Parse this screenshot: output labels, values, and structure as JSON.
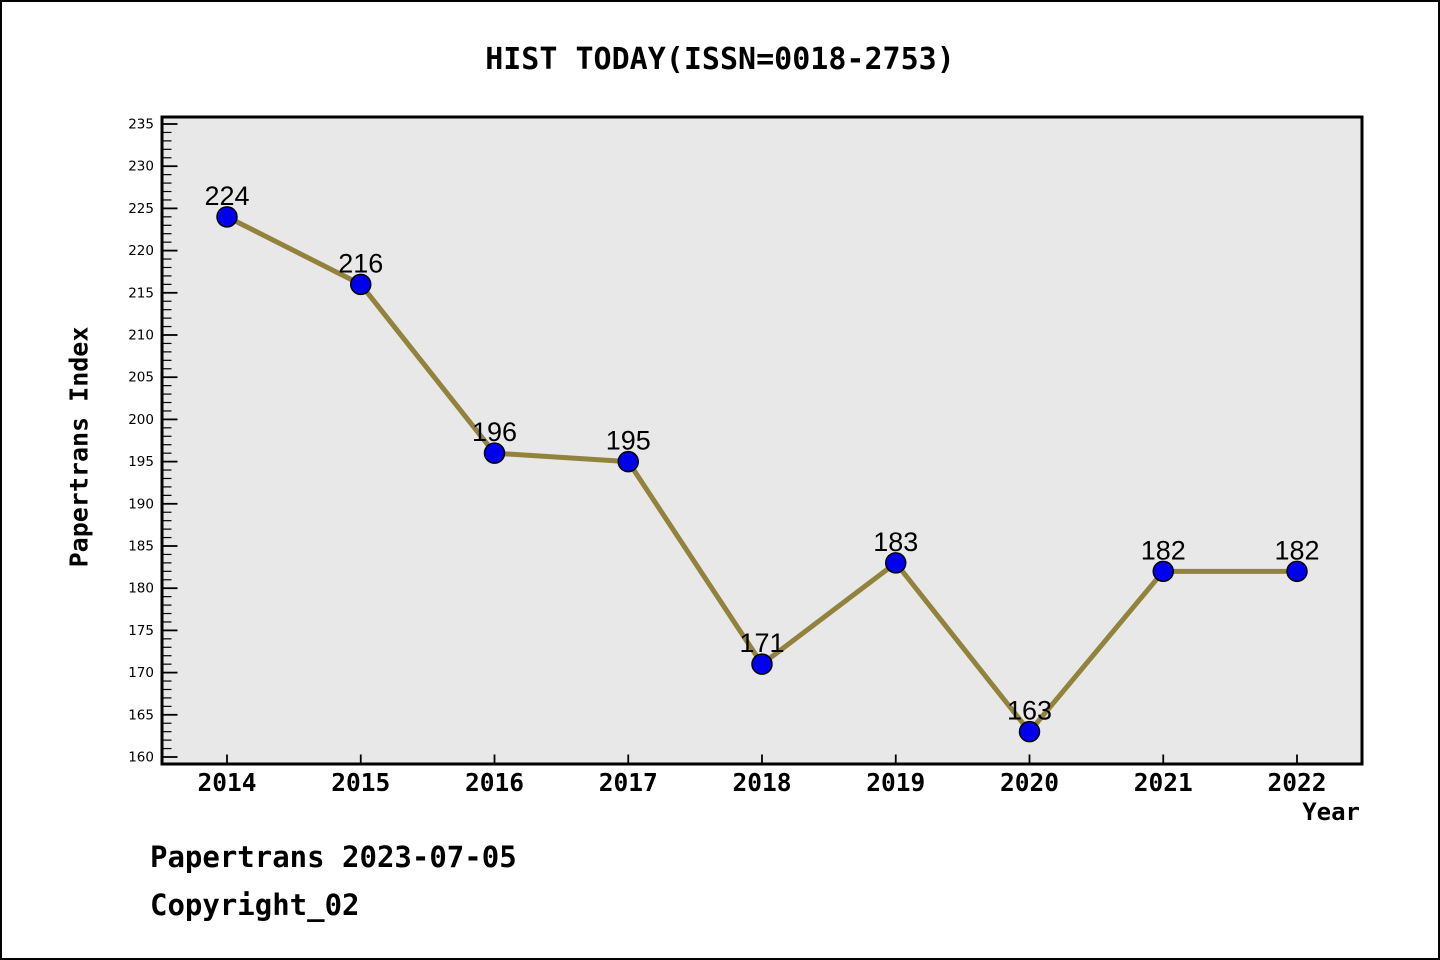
{
  "page": {
    "footer_line1": "Papertrans 2023-07-05",
    "footer_line2": "Copyright_02"
  },
  "chart_data": {
    "type": "line",
    "title": "HIST TODAY(ISSN=0018-2753)",
    "xlabel": "Year",
    "ylabel": "Papertrans Index",
    "categories": [
      "2014",
      "2015",
      "2016",
      "2017",
      "2018",
      "2019",
      "2020",
      "2021",
      "2022"
    ],
    "series": [
      {
        "name": "Papertrans Index",
        "values": [
          224,
          216,
          196,
          195,
          171,
          183,
          163,
          182,
          182
        ]
      }
    ],
    "point_labels": [
      "224",
      "216",
      "196",
      "195",
      "171",
      "183",
      "163",
      "182",
      "182"
    ],
    "ylim": [
      160,
      235
    ],
    "y_major_ticks": [
      160,
      165,
      170,
      175,
      180,
      185,
      190,
      195,
      200,
      205,
      210,
      215,
      220,
      225,
      230,
      235
    ],
    "y_major_step": 5,
    "y_minor_step": 1,
    "grid": false,
    "legend_position": "none",
    "colors": {
      "line": "#91823c",
      "marker_fill": "#0000ee",
      "marker_edge": "#000000",
      "plot_bg": "#e8e8e8",
      "page_bg": "#ffffff",
      "axis": "#000000",
      "text": "#000000"
    }
  }
}
